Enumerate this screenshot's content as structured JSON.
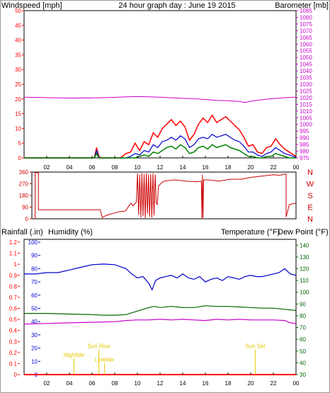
{
  "header": {
    "left_label": "Windspeed [mph]",
    "center_label": "24 hour graph day : June 19 2015",
    "right_label": "Barometer [mb]"
  },
  "colors": {
    "windspeed": "#ff0000",
    "wind_gust": "#ff0000",
    "wind_avg": "#0000cc",
    "wind_low": "#008000",
    "barometer": "#cc00cc",
    "wind_direction": "#cc0000",
    "rainfall": "#ff0000",
    "humidity": "#0000cc",
    "temperature": "#006600",
    "dew_point": "#cc00cc",
    "markers": "#e6c800",
    "axis": "#000000"
  },
  "x_axis_labels": [
    "02",
    "04",
    "06",
    "08",
    "10",
    "12",
    "14",
    "16",
    "18",
    "20",
    "22",
    "00"
  ],
  "chart_data": [
    {
      "type": "line",
      "panel": "wind-barometer",
      "x_unit": "hour",
      "xlim": [
        0,
        24
      ],
      "y_left": {
        "label": "Windspeed [mph]",
        "ylim": [
          0,
          50
        ],
        "ticks": [
          "0",
          "5",
          "10",
          "15",
          "20",
          "25",
          "30",
          "35",
          "40",
          "45",
          "50"
        ]
      },
      "y_right": {
        "label": "Barometer [mb]",
        "ylim": [
          975,
          1085
        ],
        "ticks": [
          "975",
          "980",
          "985",
          "990",
          "995",
          "1000",
          "1005",
          "1010",
          "1015",
          "1020",
          "1025",
          "1030",
          "1035",
          "1040",
          "1045",
          "1050",
          "1055",
          "1060",
          "1065",
          "1070",
          "1075",
          "1080",
          "1085"
        ]
      },
      "series": [
        {
          "key": "wind_gust",
          "axis": "left",
          "x": [
            0,
            6.2,
            6.4,
            6.6,
            6.8,
            7.5,
            8.5,
            9.0,
            9.4,
            9.8,
            10.2,
            10.6,
            11.0,
            11.4,
            11.8,
            12.2,
            12.6,
            13.0,
            13.4,
            13.8,
            14.2,
            14.6,
            15.0,
            15.4,
            15.8,
            16.2,
            16.6,
            17.0,
            17.4,
            17.8,
            18.2,
            18.6,
            19.0,
            19.4,
            19.8,
            20.2,
            20.6,
            21.0,
            21.4,
            21.8,
            22.2,
            22.6,
            23.0,
            23.4,
            24.0
          ],
          "y": [
            0,
            0,
            3.5,
            0.5,
            0,
            0,
            0,
            1.5,
            2.0,
            5.0,
            2.5,
            5.5,
            4.5,
            8.5,
            7.0,
            10.0,
            11.5,
            13.0,
            11.0,
            12.5,
            10.5,
            6.0,
            8.0,
            11.5,
            13.5,
            12.0,
            14.5,
            12.0,
            13.0,
            14.0,
            12.5,
            11.0,
            9.5,
            7.0,
            4.0,
            4.5,
            2.0,
            1.5,
            3.5,
            4.0,
            6.5,
            4.5,
            3.0,
            2.0,
            0.5
          ]
        },
        {
          "key": "wind_avg",
          "axis": "left",
          "x": [
            0,
            6.2,
            6.4,
            6.6,
            6.8,
            9.0,
            9.4,
            9.8,
            10.2,
            10.6,
            11.0,
            11.4,
            11.8,
            12.2,
            12.6,
            13.0,
            13.4,
            13.8,
            14.2,
            14.6,
            15.0,
            15.4,
            15.8,
            16.2,
            16.6,
            17.0,
            17.4,
            17.8,
            18.2,
            18.6,
            19.0,
            19.4,
            19.8,
            20.2,
            20.6,
            21.0,
            21.4,
            21.8,
            22.2,
            22.6,
            23.0,
            23.4,
            24.0
          ],
          "y": [
            0,
            0,
            2.5,
            0.2,
            0,
            0,
            0.5,
            1.5,
            1.0,
            2.5,
            2.0,
            4.5,
            3.5,
            5.5,
            6.0,
            7.0,
            6.0,
            7.5,
            6.5,
            3.5,
            4.5,
            6.5,
            7.0,
            6.5,
            8.0,
            7.0,
            7.5,
            8.0,
            7.0,
            6.0,
            5.5,
            4.0,
            2.0,
            2.0,
            1.0,
            0.5,
            1.5,
            2.0,
            3.5,
            2.5,
            1.5,
            1.0,
            0.2
          ]
        },
        {
          "key": "wind_low",
          "axis": "left",
          "x": [
            0,
            6.2,
            6.4,
            6.6,
            6.8,
            9.8,
            10.2,
            10.6,
            11.0,
            11.4,
            11.8,
            12.2,
            12.6,
            13.0,
            13.4,
            13.8,
            14.2,
            14.6,
            15.0,
            15.4,
            15.8,
            16.2,
            16.6,
            17.0,
            17.4,
            17.8,
            18.2,
            18.6,
            19.0,
            19.4,
            19.8,
            20.2,
            20.6,
            21.0,
            21.4,
            21.8,
            22.2,
            22.6,
            23.0,
            23.4,
            24.0
          ],
          "y": [
            0,
            0,
            1.5,
            0,
            0,
            0,
            0.5,
            1.0,
            0.5,
            2.0,
            1.5,
            2.5,
            3.5,
            4.0,
            3.0,
            4.5,
            3.5,
            1.5,
            2.0,
            3.5,
            4.0,
            3.0,
            4.5,
            3.5,
            4.0,
            4.5,
            3.5,
            3.0,
            2.5,
            1.5,
            0.5,
            0.5,
            0,
            0,
            0.5,
            0.5,
            1.5,
            1.0,
            0.5,
            0,
            0
          ]
        },
        {
          "key": "barometer",
          "axis": "right",
          "x": [
            0,
            2,
            4,
            6,
            8,
            9,
            10,
            11,
            12,
            13,
            14,
            15,
            16,
            17,
            18,
            19,
            19.5,
            20,
            21,
            22,
            23,
            24
          ],
          "y": [
            1020.4,
            1020.0,
            1019.7,
            1019.8,
            1020.2,
            1020.6,
            1020.8,
            1020.6,
            1020.3,
            1019.9,
            1019.5,
            1019.2,
            1018.6,
            1018.0,
            1017.7,
            1017.2,
            1016.4,
            1017.3,
            1018.5,
            1019.3,
            1020.0,
            1020.3
          ]
        }
      ]
    },
    {
      "type": "line",
      "panel": "wind-direction",
      "x_unit": "hour",
      "xlim": [
        0,
        24
      ],
      "ylim": [
        0,
        360
      ],
      "ticks": [
        "0",
        "90",
        "180",
        "270",
        "360"
      ],
      "compass_labels": [
        "N",
        "W",
        "S",
        "E",
        "N"
      ],
      "series": [
        {
          "key": "wind_direction",
          "x": [
            0.3,
            0.3,
            0.6,
            0.6,
            6.2,
            6.4,
            6.6,
            6.9,
            7.5,
            8.0,
            8.5,
            8.9,
            9.0,
            9.2,
            9.5,
            9.6,
            9.7,
            9.8,
            9.9,
            10.0,
            10.1,
            10.2,
            10.3,
            10.4,
            10.5,
            10.6,
            10.7,
            10.8,
            10.9,
            11.0,
            11.1,
            11.2,
            11.3,
            11.4,
            11.5,
            11.7,
            12.0,
            13.0,
            14.0,
            15.0,
            15.4,
            15.45,
            15.5,
            15.55,
            15.6,
            16.0,
            17.0,
            18.0,
            19.0,
            20.0,
            21.0,
            22.0,
            22.5,
            23.0,
            23.1,
            23.1,
            23.4,
            24.0
          ],
          "y": [
            0,
            355,
            355,
            70,
            70,
            10,
            20,
            30,
            45,
            55,
            60,
            110,
            120,
            100,
            130,
            350,
            30,
            340,
            10,
            350,
            20,
            345,
            5,
            350,
            40,
            340,
            15,
            345,
            10,
            350,
            25,
            340,
            120,
            110,
            250,
            270,
            290,
            300,
            290,
            285,
            290,
            5,
            340,
            5,
            300,
            300,
            290,
            305,
            305,
            320,
            330,
            340,
            335,
            345,
            345,
            15,
            110,
            120
          ]
        }
      ]
    },
    {
      "type": "line",
      "panel": "rain-humidity-temperature",
      "x_unit": "hour",
      "xlim": [
        0,
        24
      ],
      "y_rain": {
        "label": "Rainfall (.in)",
        "ylim": [
          0,
          1.2
        ],
        "ticks": [
          "0",
          "0.1",
          "0.2",
          "0.3",
          "0.4",
          "0.5",
          "0.6",
          "0.7",
          "0.8",
          "0.9",
          "1",
          "1.1",
          "1.2"
        ]
      },
      "y_humidity": {
        "label": "Humidity (%)",
        "ylim": [
          0,
          100
        ],
        "ticks": [
          "0",
          "10",
          "20",
          "30",
          "40",
          "50",
          "60",
          "70",
          "80",
          "90",
          "100"
        ]
      },
      "y_temperature": {
        "label": "Temperature (°F)",
        "ylim": [
          30,
          145
        ],
        "ticks": [
          "30",
          "40",
          "50",
          "60",
          "70",
          "80",
          "90",
          "100",
          "110",
          "120",
          "130",
          "140"
        ]
      },
      "y_dewpoint_label": "Dew Point (°F)",
      "series": [
        {
          "key": "rainfall",
          "axis": "rain",
          "x": [
            0,
            24
          ],
          "y": [
            0,
            0
          ]
        },
        {
          "key": "humidity",
          "axis": "humidity",
          "x": [
            0,
            1,
            2,
            3,
            4,
            5,
            6,
            7,
            8,
            9,
            9.5,
            10,
            10.5,
            11,
            11.3,
            11.6,
            12,
            12.5,
            13,
            13.5,
            14,
            14.5,
            15,
            15.5,
            16,
            16.5,
            17,
            17.5,
            18,
            18.5,
            19,
            19.5,
            20,
            20.5,
            21,
            21.5,
            22,
            22.5,
            23,
            23.5,
            24
          ],
          "y": [
            76,
            76,
            77,
            77,
            79,
            81,
            83,
            83.5,
            83,
            80,
            76,
            73,
            74,
            69,
            64,
            71,
            73,
            74,
            75,
            73,
            76,
            73,
            72,
            74,
            70,
            72,
            73,
            71,
            74,
            73,
            72,
            74,
            75,
            74,
            74,
            75,
            76,
            77,
            80,
            76,
            75
          ]
        },
        {
          "key": "temperature",
          "axis": "temperature",
          "x": [
            0,
            2,
            4,
            6,
            7,
            8,
            9,
            10,
            11,
            11.5,
            12,
            13,
            14,
            15,
            16,
            17,
            18,
            19,
            20,
            21,
            22,
            23,
            24
          ],
          "y": [
            82,
            82,
            81.5,
            81,
            80.5,
            80.5,
            81,
            84,
            87,
            88,
            87,
            88,
            87,
            87,
            88.5,
            88,
            88,
            87.5,
            87,
            86.5,
            86.5,
            85.5,
            84.5
          ]
        },
        {
          "key": "dew_point",
          "axis": "temperature",
          "x": [
            0,
            2,
            4,
            6,
            8,
            9,
            10,
            11,
            12,
            13,
            14,
            15,
            16,
            17,
            18,
            19,
            20,
            21,
            22,
            23,
            23.5,
            24
          ],
          "y": [
            73,
            73.5,
            74,
            74.5,
            75,
            76,
            76.5,
            76.5,
            77,
            76.5,
            77,
            76.5,
            76,
            77,
            76.5,
            77,
            76.5,
            76.5,
            76.5,
            76,
            74,
            73.5
          ]
        }
      ],
      "markers": [
        {
          "label": "Sun Rise",
          "hour": 6.6,
          "value": 0.24
        },
        {
          "label": "Hightide",
          "hour": 4.4,
          "value": 0.16
        },
        {
          "label": "Lowtide",
          "hour": 7.1,
          "value": 0.12
        },
        {
          "label": "Sun Set",
          "hour": 20.4,
          "value": 0.24
        }
      ]
    }
  ]
}
